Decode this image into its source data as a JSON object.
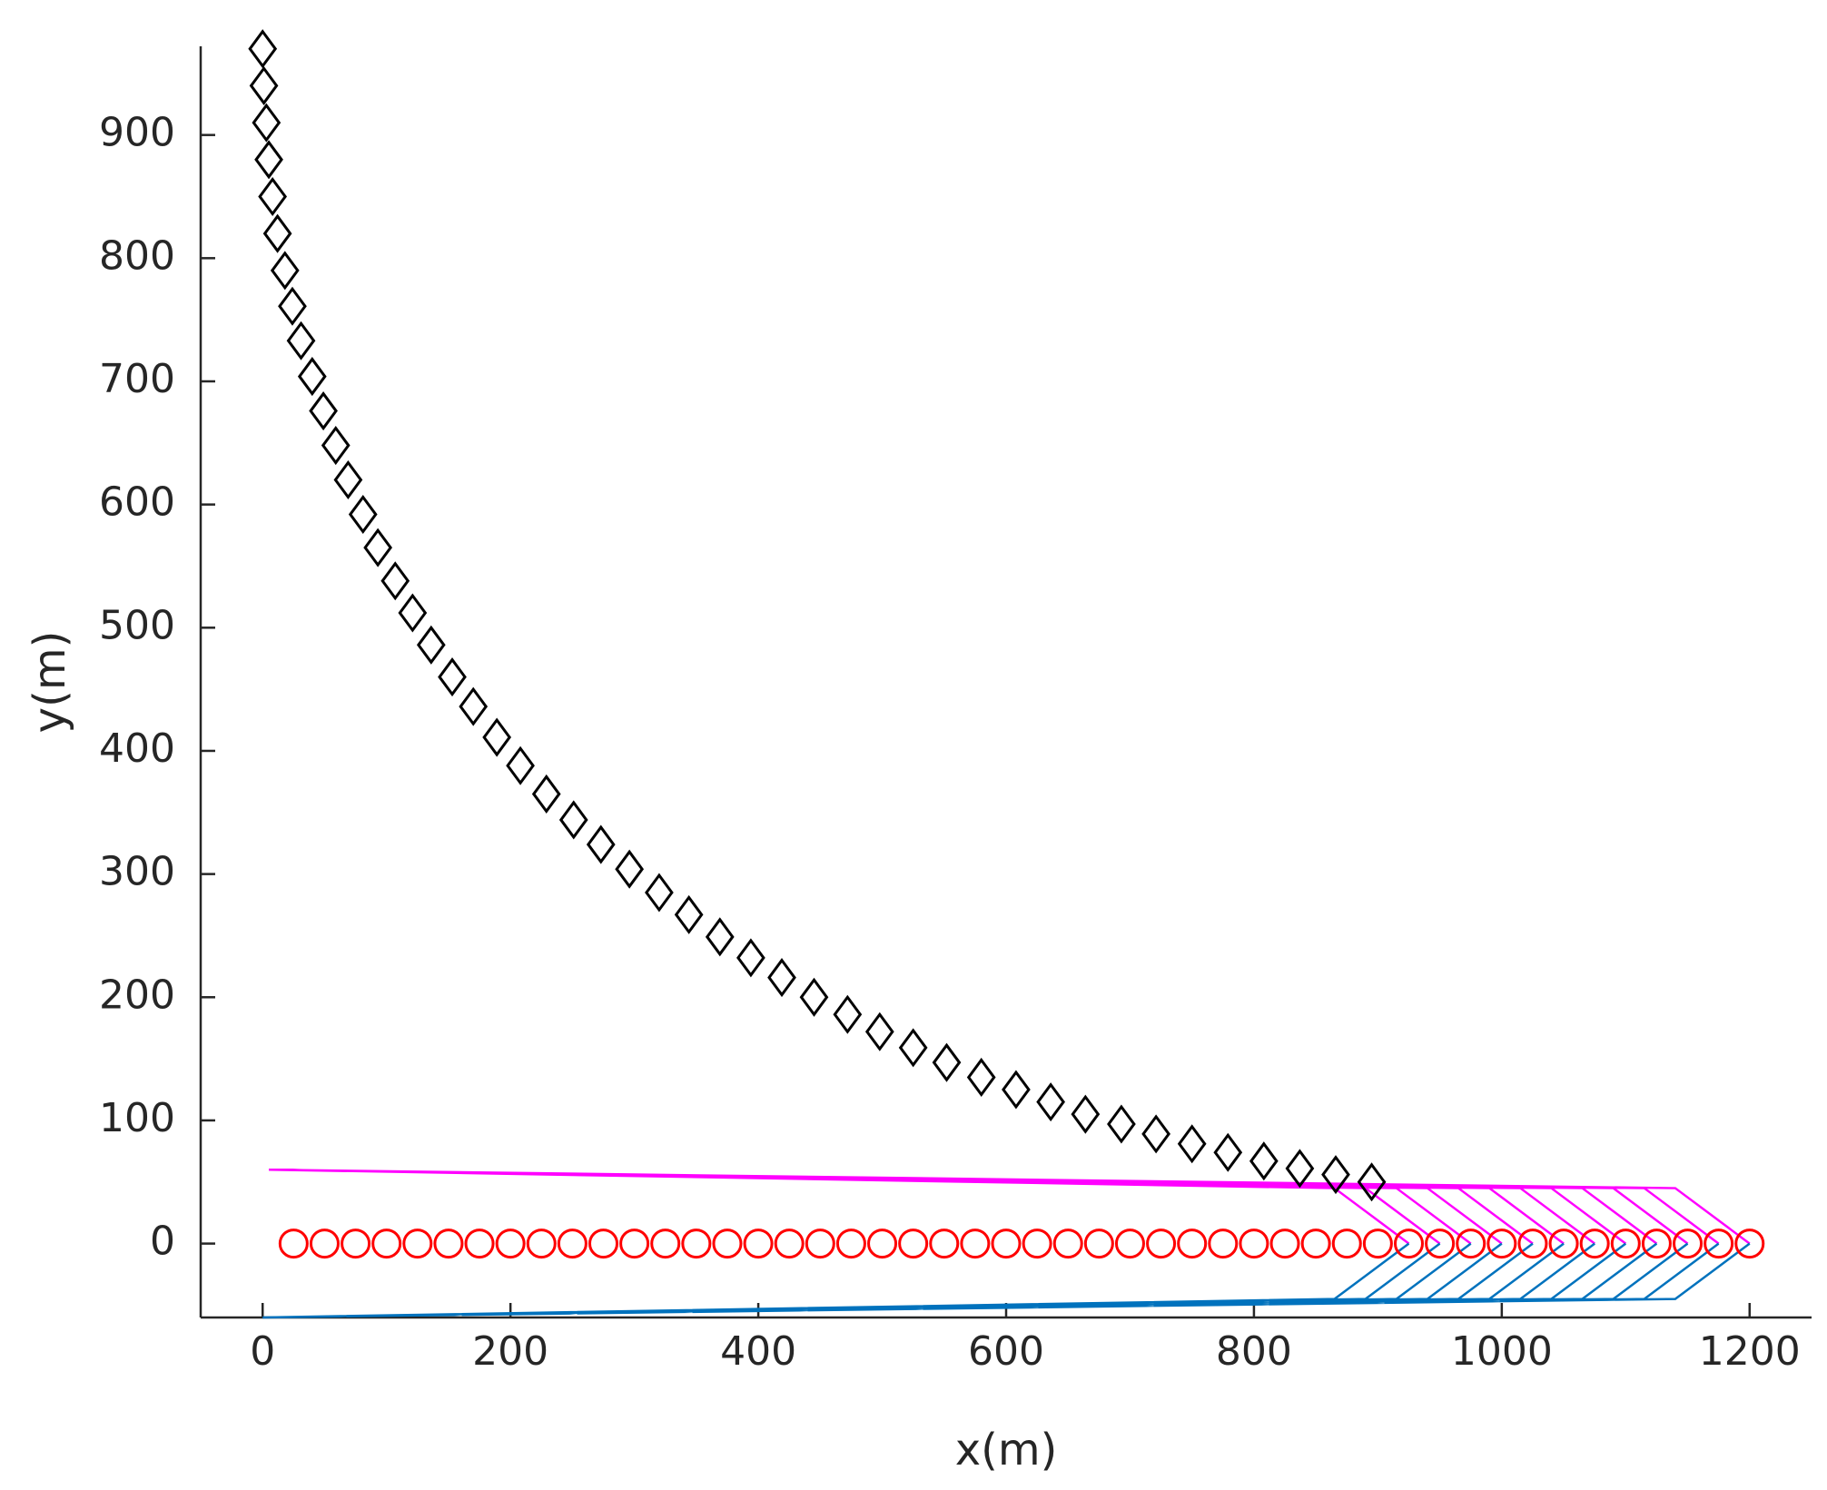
{
  "chart_data": {
    "type": "scatter",
    "xlabel": "x(m)",
    "ylabel": "y(m)",
    "xlim": [
      -50,
      1250
    ],
    "ylim": [
      -60,
      972
    ],
    "xticks": [
      0,
      200,
      400,
      600,
      800,
      1000,
      1200
    ],
    "yticks": [
      0,
      100,
      200,
      300,
      400,
      500,
      600,
      700,
      800,
      900
    ],
    "grid": false,
    "series": [
      {
        "color": "#ff00ff",
        "marker": "none",
        "x": [
          5,
          865,
          925,
          null,
          5,
          890,
          950,
          null,
          5,
          915,
          975,
          null,
          5,
          940,
          1000,
          null,
          5,
          965,
          1025,
          null,
          5,
          990,
          1050,
          null,
          5,
          1015,
          1075,
          null,
          5,
          1040,
          1100,
          null,
          5,
          1065,
          1125,
          null,
          5,
          1090,
          1150,
          null,
          5,
          1115,
          1175,
          null,
          5,
          1140,
          1200
        ],
        "y": [
          60,
          45,
          0,
          null,
          60,
          45,
          0,
          null,
          60,
          45,
          0,
          null,
          60,
          45,
          0,
          null,
          60,
          45,
          0,
          null,
          60,
          45,
          0,
          null,
          60,
          45,
          0,
          null,
          60,
          45,
          0,
          null,
          60,
          45,
          0,
          null,
          60,
          45,
          0,
          null,
          60,
          45,
          0,
          null,
          60,
          45,
          0
        ]
      },
      {
        "color": "#0072bd",
        "marker": "none",
        "x": [
          0,
          865,
          925,
          null,
          0,
          890,
          950,
          null,
          0,
          915,
          975,
          null,
          0,
          940,
          1000,
          null,
          0,
          965,
          1025,
          null,
          0,
          990,
          1050,
          null,
          0,
          1015,
          1075,
          null,
          0,
          1040,
          1100,
          null,
          0,
          1065,
          1125,
          null,
          0,
          1090,
          1150,
          null,
          0,
          1115,
          1175,
          null,
          0,
          1140,
          1200
        ],
        "y": [
          -60,
          -45,
          0,
          null,
          -60,
          -45,
          0,
          null,
          -60,
          -45,
          0,
          null,
          -60,
          -45,
          0,
          null,
          -60,
          -45,
          0,
          null,
          -60,
          -45,
          0,
          null,
          -60,
          -45,
          0,
          null,
          -60,
          -45,
          0,
          null,
          -60,
          -45,
          0,
          null,
          -60,
          -45,
          0,
          null,
          -60,
          -45,
          0,
          null,
          -60,
          -45,
          0
        ]
      },
      {
        "color": "#ff0000",
        "marker": "circle",
        "x": [
          25,
          50,
          75,
          100,
          125,
          150,
          175,
          200,
          225,
          250,
          275,
          300,
          325,
          350,
          375,
          400,
          425,
          450,
          475,
          500,
          525,
          550,
          575,
          600,
          625,
          650,
          675,
          700,
          725,
          750,
          775,
          800,
          825,
          850,
          875,
          900,
          925,
          950,
          975,
          1000,
          1025,
          1050,
          1075,
          1100,
          1125,
          1150,
          1175,
          1200
        ],
        "y": [
          0,
          0,
          0,
          0,
          0,
          0,
          0,
          0,
          0,
          0,
          0,
          0,
          0,
          0,
          0,
          0,
          0,
          0,
          0,
          0,
          0,
          0,
          0,
          0,
          0,
          0,
          0,
          0,
          0,
          0,
          0,
          0,
          0,
          0,
          0,
          0,
          0,
          0,
          0,
          0,
          0,
          0,
          0,
          0,
          0,
          0,
          0,
          0
        ]
      },
      {
        "color": "#000000",
        "marker": "diamond",
        "x": [
          0,
          1,
          3,
          5,
          8,
          12,
          18,
          24,
          31,
          40,
          49,
          59,
          69,
          81,
          93,
          107,
          121,
          136,
          153,
          170,
          189,
          208,
          229,
          251,
          273,
          296,
          320,
          344,
          369,
          394,
          419,
          445,
          472,
          498,
          525,
          552,
          580,
          608,
          636,
          664,
          693,
          721,
          750,
          779,
          808,
          837,
          866,
          895
        ],
        "y": [
          970,
          940,
          910,
          880,
          850,
          820,
          790,
          761,
          733,
          704,
          676,
          648,
          620,
          592,
          565,
          538,
          512,
          486,
          460,
          436,
          411,
          388,
          365,
          344,
          324,
          304,
          285,
          267,
          249,
          232,
          216,
          200,
          186,
          172,
          159,
          147,
          135,
          125,
          115,
          105,
          97,
          89,
          81,
          74,
          67,
          61,
          56,
          50
        ]
      }
    ]
  }
}
